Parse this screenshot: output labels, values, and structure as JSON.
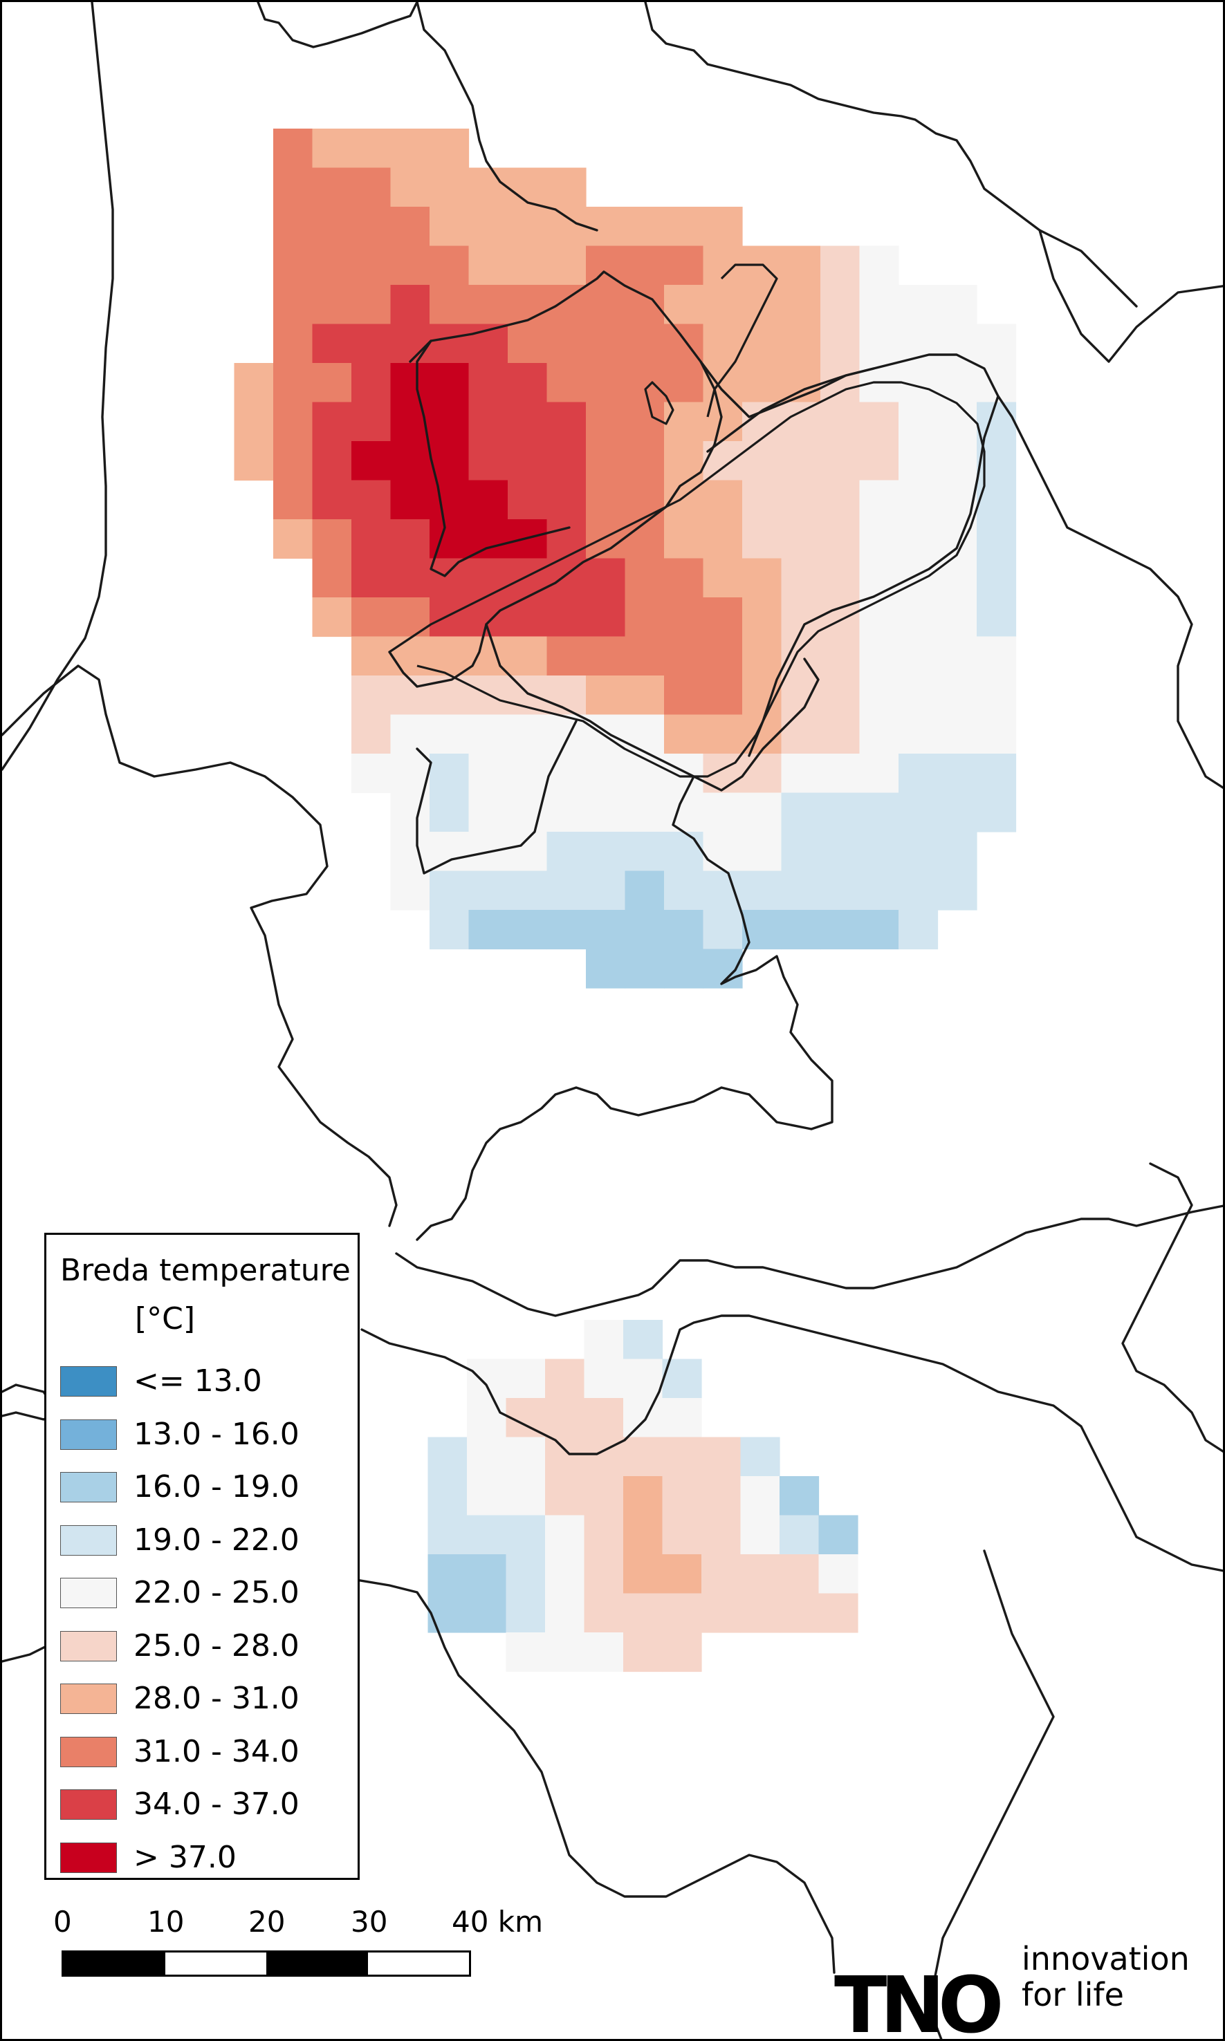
{
  "legend": {
    "title": "Breda temperature",
    "unit": "[°C]",
    "classes": [
      {
        "label": "<= 13.0",
        "color": "#3d8fc4"
      },
      {
        "label": "13.0 - 16.0",
        "color": "#74b1da"
      },
      {
        "label": "16.0 - 19.0",
        "color": "#a9d0e6"
      },
      {
        "label": "19.0 - 22.0",
        "color": "#d2e5f0"
      },
      {
        "label": "22.0 - 25.0",
        "color": "#f6f6f6"
      },
      {
        "label": "25.0 - 28.0",
        "color": "#f6d5c9"
      },
      {
        "label": "28.0 - 31.0",
        "color": "#f4b495"
      },
      {
        "label": "31.0 - 34.0",
        "color": "#e98068"
      },
      {
        "label": "34.0 - 37.0",
        "color": "#da4047"
      },
      {
        "label": "> 37.0",
        "color": "#c8001e"
      }
    ]
  },
  "scalebar": {
    "labels": [
      "0",
      "10",
      "20",
      "30",
      "40 km"
    ],
    "segments": [
      "black",
      "white",
      "black",
      "white"
    ]
  },
  "logo": {
    "wordmark": "TNO",
    "tagline_line1": "innovation",
    "tagline_line2": "for life"
  },
  "grid": {
    "rows": [
      "........222222..................",
      "........322222222...............",
      "........3333222222222...........",
      "........3333332222222222..11....",
      "........3333433332222222111000..",
      "........344443333332222211100000",
      ".......3344455443333322211000000",
      ".......2334555443333222110000000",
      "........1344555443332222110000000",
      "........3335554443322111111000000",
      ".........2334444443222111110000000",
      ".........1233444433332211110000000",
      ".........12333443333221110000000",
      "..........1.......................",
      "..........00011000000000000000...",
      "..........0.0.0.0000000000000000",
      "...........0.000.0000000..000...",
      "...........00000000000000000....",
      "............0.0.0000.0.0000000..",
      "..............-.----------.--...",
      "..............--.....-----......"
    ]
  }
}
